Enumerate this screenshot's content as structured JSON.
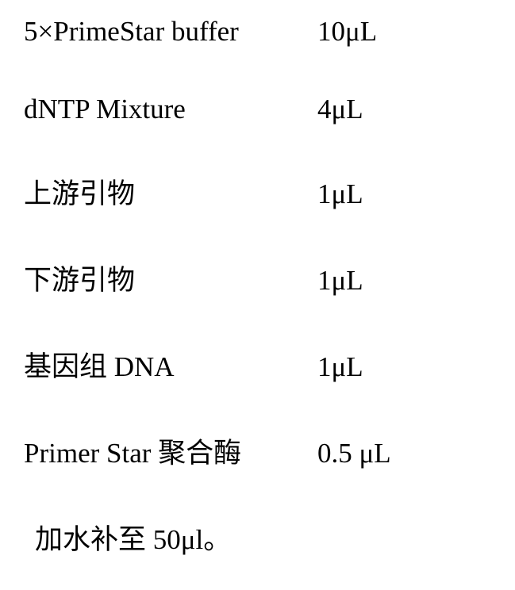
{
  "reagent_table": {
    "type": "table",
    "rows": [
      {
        "label": "5×PrimeStar buffer",
        "value": "10μL"
      },
      {
        "label": "dNTP Mixture",
        "value": "4μL"
      },
      {
        "label": "上游引物",
        "value": "1μL"
      },
      {
        "label": "下游引物",
        "value": "1μL"
      },
      {
        "label": "基因组 DNA",
        "value": "1μL"
      },
      {
        "label": "Primer Star 聚合酶",
        "value": "0.5 μL"
      }
    ],
    "footer": "加水补至 50μl。",
    "text_color": "#000000",
    "background_color": "#ffffff",
    "label_fontsize": 35,
    "value_fontsize": 35,
    "row_spacing": 58,
    "label_column_width": 370
  }
}
